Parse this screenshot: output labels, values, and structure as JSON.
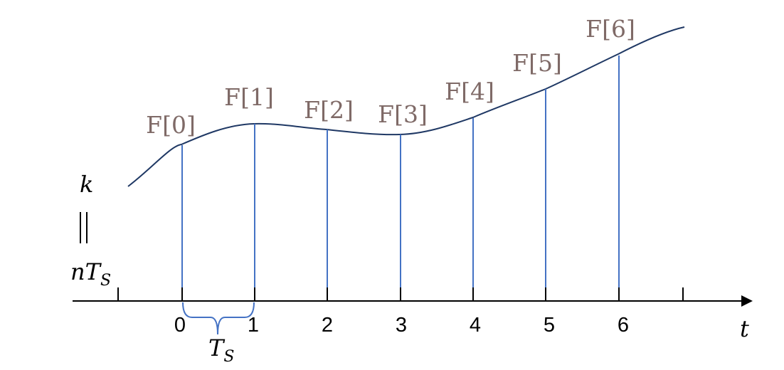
{
  "diagram": {
    "axis_label": "t",
    "left_label_top": "k",
    "left_label_bottom_base": "nT",
    "left_label_bottom_sub": "S",
    "period_label_base": "T",
    "period_label_sub": "S",
    "ticks": [
      "0",
      "1",
      "2",
      "3",
      "4",
      "5",
      "6"
    ],
    "samples": [
      "F[0]",
      "F[1]",
      "F[2]",
      "F[3]",
      "F[4]",
      "F[5]",
      "F[6]"
    ]
  },
  "colors": {
    "stem": "#4472c4",
    "curve": "#1f3864",
    "sample_label": "#7f6a67",
    "axis": "#000000"
  }
}
